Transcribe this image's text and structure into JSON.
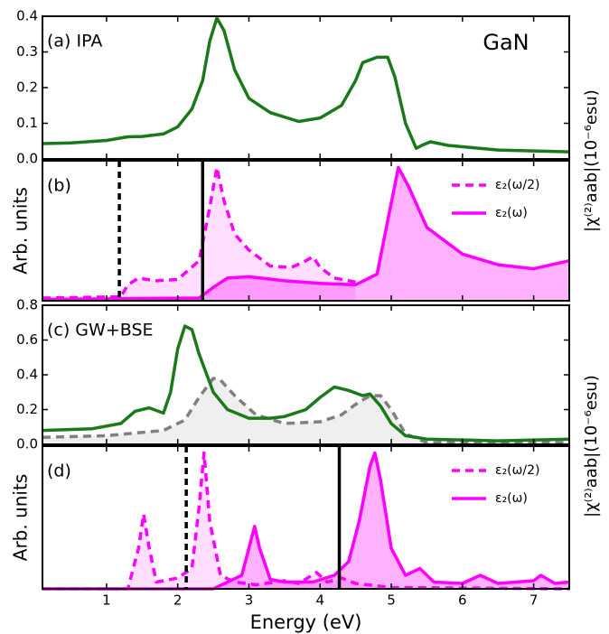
{
  "chart_data": [
    {
      "type": "line",
      "panel_label": "(a) IPA",
      "title": "GaN",
      "right_label": "|χ⁽²⁾aab|(10⁻⁶esu)",
      "xlim": [
        0.1,
        7.5
      ],
      "xticks": [
        1,
        2,
        3,
        4,
        5,
        6,
        7
      ],
      "ylim": [
        0,
        0.4
      ],
      "yticks": [
        {
          "value": 0,
          "label": "0.0"
        },
        0.1,
        0.2,
        0.3,
        0.4
      ],
      "series": [
        {
          "color": "#1a7a1a",
          "dash": false,
          "fill": false,
          "x": [
            0.1,
            0.5,
            1.0,
            1.3,
            1.5,
            1.8,
            2.0,
            2.2,
            2.35,
            2.45,
            2.55,
            2.65,
            2.8,
            3.0,
            3.3,
            3.7,
            4.0,
            4.3,
            4.5,
            4.6,
            4.8,
            4.95,
            5.05,
            5.2,
            5.35,
            5.45,
            5.55,
            5.8,
            6.5,
            7.5
          ],
          "values": [
            0.043,
            0.045,
            0.052,
            0.062,
            0.063,
            0.07,
            0.09,
            0.14,
            0.22,
            0.33,
            0.395,
            0.36,
            0.25,
            0.17,
            0.13,
            0.105,
            0.115,
            0.15,
            0.22,
            0.27,
            0.285,
            0.285,
            0.23,
            0.1,
            0.03,
            0.04,
            0.048,
            0.038,
            0.025,
            0.02
          ]
        }
      ]
    },
    {
      "type": "line",
      "panel_label": "(b)",
      "ylabel": "Arb. units",
      "legend": "upper right",
      "xlim": [
        0.1,
        7.5
      ],
      "xticks": [
        1,
        2,
        3,
        4,
        5,
        6,
        7
      ],
      "ylim": [
        0,
        1.05
      ],
      "vlines": [
        {
          "x": 1.18,
          "dash": true
        },
        {
          "x": 2.35,
          "dash": false
        }
      ],
      "series": [
        {
          "name": "ε₂(ω/2)",
          "color": "#ff00ff",
          "dash": true,
          "fill": true,
          "x": [
            0.1,
            1.2,
            1.3,
            1.45,
            1.7,
            2.0,
            2.3,
            2.45,
            2.55,
            2.65,
            2.8,
            3.0,
            3.3,
            3.6,
            3.8,
            3.9,
            4.0,
            4.2,
            4.5
          ],
          "values": [
            0.02,
            0.03,
            0.12,
            0.17,
            0.15,
            0.16,
            0.3,
            0.7,
            1.0,
            0.75,
            0.5,
            0.38,
            0.26,
            0.25,
            0.3,
            0.33,
            0.25,
            0.17,
            0.14
          ]
        },
        {
          "name": "ε₂(ω)",
          "color": "#ff00ff",
          "dash": false,
          "fill": true,
          "x": [
            0.1,
            2.3,
            2.5,
            2.7,
            3.0,
            3.5,
            4.0,
            4.5,
            4.8,
            4.95,
            5.1,
            5.25,
            5.5,
            6.0,
            6.5,
            7.0,
            7.5
          ],
          "values": [
            0.01,
            0.02,
            0.1,
            0.17,
            0.18,
            0.15,
            0.13,
            0.12,
            0.2,
            0.6,
            1.0,
            0.85,
            0.55,
            0.35,
            0.27,
            0.24,
            0.3
          ]
        }
      ]
    },
    {
      "type": "line",
      "panel_label": "(c) GW+BSE",
      "right_label": "|χ⁽²⁾aab|(10⁻⁶esu)",
      "xlim": [
        0.1,
        7.5
      ],
      "xticks": [
        1,
        2,
        3,
        4,
        5,
        6,
        7
      ],
      "ylim": [
        0,
        0.8
      ],
      "yticks": [
        {
          "value": 0,
          "label": "0.0"
        },
        0.2,
        0.4,
        0.6,
        0.8
      ],
      "series": [
        {
          "color": "#808080",
          "dash": true,
          "fill": true,
          "x": [
            0.1,
            1.0,
            1.8,
            2.1,
            2.3,
            2.5,
            2.6,
            2.8,
            3.1,
            3.5,
            4.0,
            4.3,
            4.5,
            4.7,
            4.85,
            5.0,
            5.2,
            5.5,
            7.5
          ],
          "values": [
            0.04,
            0.05,
            0.08,
            0.14,
            0.27,
            0.38,
            0.37,
            0.28,
            0.17,
            0.12,
            0.13,
            0.17,
            0.23,
            0.28,
            0.28,
            0.2,
            0.06,
            0.01,
            0.01
          ]
        },
        {
          "color": "#1a7a1a",
          "dash": false,
          "fill": false,
          "x": [
            0.1,
            0.8,
            1.2,
            1.4,
            1.6,
            1.8,
            1.9,
            2.0,
            2.1,
            2.2,
            2.3,
            2.5,
            2.7,
            3.0,
            3.3,
            3.5,
            3.8,
            4.0,
            4.2,
            4.4,
            4.6,
            4.7,
            4.85,
            5.0,
            5.2,
            5.5,
            6.5,
            7.5
          ],
          "values": [
            0.08,
            0.09,
            0.12,
            0.19,
            0.21,
            0.18,
            0.3,
            0.55,
            0.68,
            0.66,
            0.52,
            0.3,
            0.2,
            0.15,
            0.15,
            0.16,
            0.2,
            0.27,
            0.33,
            0.31,
            0.28,
            0.29,
            0.22,
            0.12,
            0.05,
            0.03,
            0.02,
            0.03
          ]
        }
      ]
    },
    {
      "type": "line",
      "panel_label": "(d)",
      "ylabel": "Arb. units",
      "xlabel": "Energy (eV)",
      "legend": "upper right",
      "xlim": [
        0.1,
        7.5
      ],
      "xticks": [
        1,
        2,
        3,
        4,
        5,
        6,
        7
      ],
      "ylim": [
        0,
        1.05
      ],
      "vlines": [
        {
          "x": 2.12,
          "dash": true
        },
        {
          "x": 4.27,
          "dash": false
        }
      ],
      "series": [
        {
          "name": "ε₂(ω/2)",
          "color": "#ff00ff",
          "dash": true,
          "fill": true,
          "x": [
            0.1,
            1.3,
            1.45,
            1.52,
            1.6,
            1.7,
            2.0,
            2.2,
            2.3,
            2.37,
            2.45,
            2.6,
            2.8,
            3.1,
            3.5,
            3.7,
            3.95,
            4.1,
            4.3,
            4.5,
            5.0,
            7.5
          ],
          "values": [
            0.0,
            0.0,
            0.3,
            0.55,
            0.3,
            0.05,
            0.08,
            0.15,
            0.6,
            1.0,
            0.5,
            0.1,
            0.05,
            0.03,
            0.06,
            0.04,
            0.12,
            0.05,
            0.08,
            0.04,
            0.01,
            0.0
          ]
        },
        {
          "name": "ε₂(ω)",
          "color": "#ff00ff",
          "dash": false,
          "fill": true,
          "x": [
            0.1,
            2.5,
            2.9,
            3.0,
            3.08,
            3.15,
            3.3,
            3.5,
            3.9,
            4.2,
            4.4,
            4.55,
            4.7,
            4.77,
            4.85,
            5.0,
            5.2,
            5.4,
            5.6,
            6.0,
            6.25,
            6.5,
            7.0,
            7.1,
            7.3,
            7.5
          ],
          "values": [
            0.0,
            0.0,
            0.1,
            0.3,
            0.46,
            0.3,
            0.07,
            0.05,
            0.05,
            0.1,
            0.2,
            0.5,
            0.9,
            1.0,
            0.8,
            0.3,
            0.1,
            0.15,
            0.05,
            0.04,
            0.1,
            0.04,
            0.06,
            0.1,
            0.04,
            0.05
          ]
        }
      ]
    }
  ]
}
